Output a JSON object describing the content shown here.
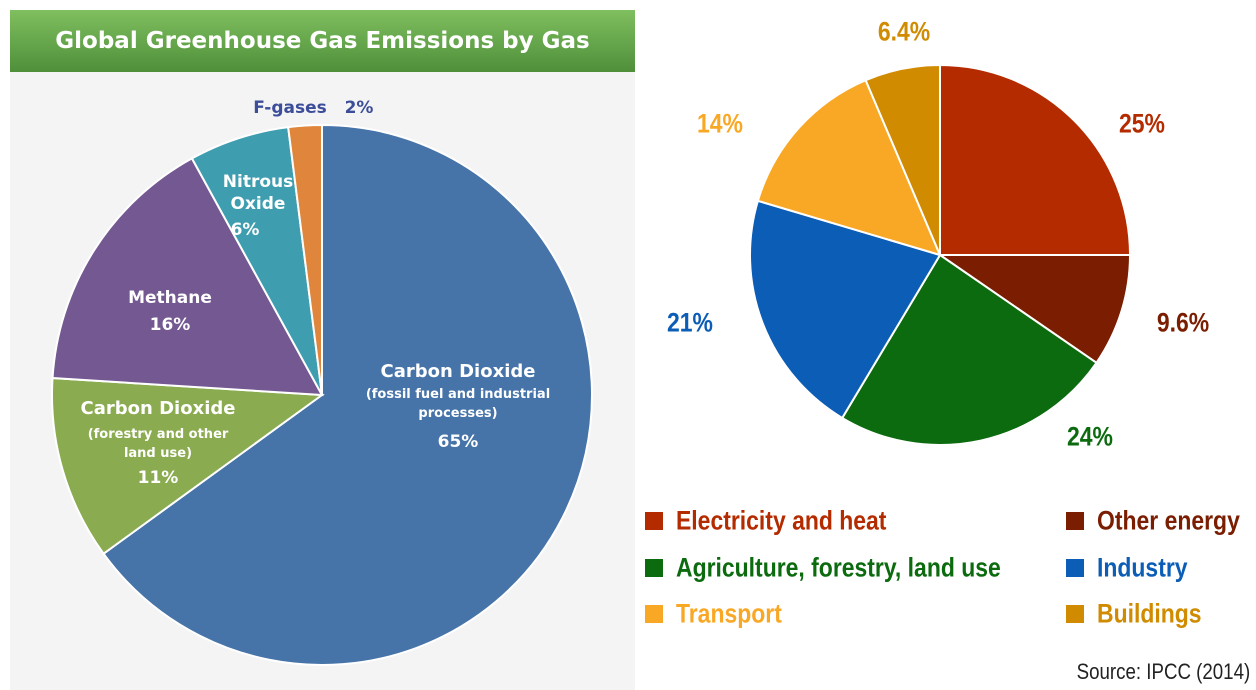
{
  "chart_data": [
    {
      "type": "pie",
      "title": "Global Greenhouse Gas Emissions by Gas",
      "categories": [
        "Carbon Dioxide",
        "Carbon Dioxide",
        "Methane",
        "Nitrous Oxide",
        "F-gases"
      ],
      "descriptions": [
        "(fossil fuel and industrial processes)",
        "(forestry and other land use)",
        null,
        null,
        null
      ],
      "values": [
        65,
        11,
        16,
        6,
        2
      ],
      "value_labels": [
        "65%",
        "11%",
        "16%",
        "6%",
        "2%"
      ],
      "colors": [
        "#4673a8",
        "#8bab50",
        "#735891",
        "#3f9db0",
        "#e0863c"
      ]
    },
    {
      "type": "pie",
      "categories": [
        "Electricity and heat",
        "Other energy",
        "Agriculture, forestry, land use",
        "Industry",
        "Transport",
        "Buildings"
      ],
      "values": [
        25,
        9.6,
        24,
        21,
        14,
        6.4
      ],
      "value_labels": [
        "25%",
        "9.6%",
        "24%",
        "21%",
        "14%",
        "6.4%"
      ],
      "colors": [
        "#b52b00",
        "#7a1d00",
        "#0b6b0e",
        "#0c5db6",
        "#f9a826",
        "#d08b00"
      ],
      "source": "Source: IPCC (2014)"
    }
  ]
}
